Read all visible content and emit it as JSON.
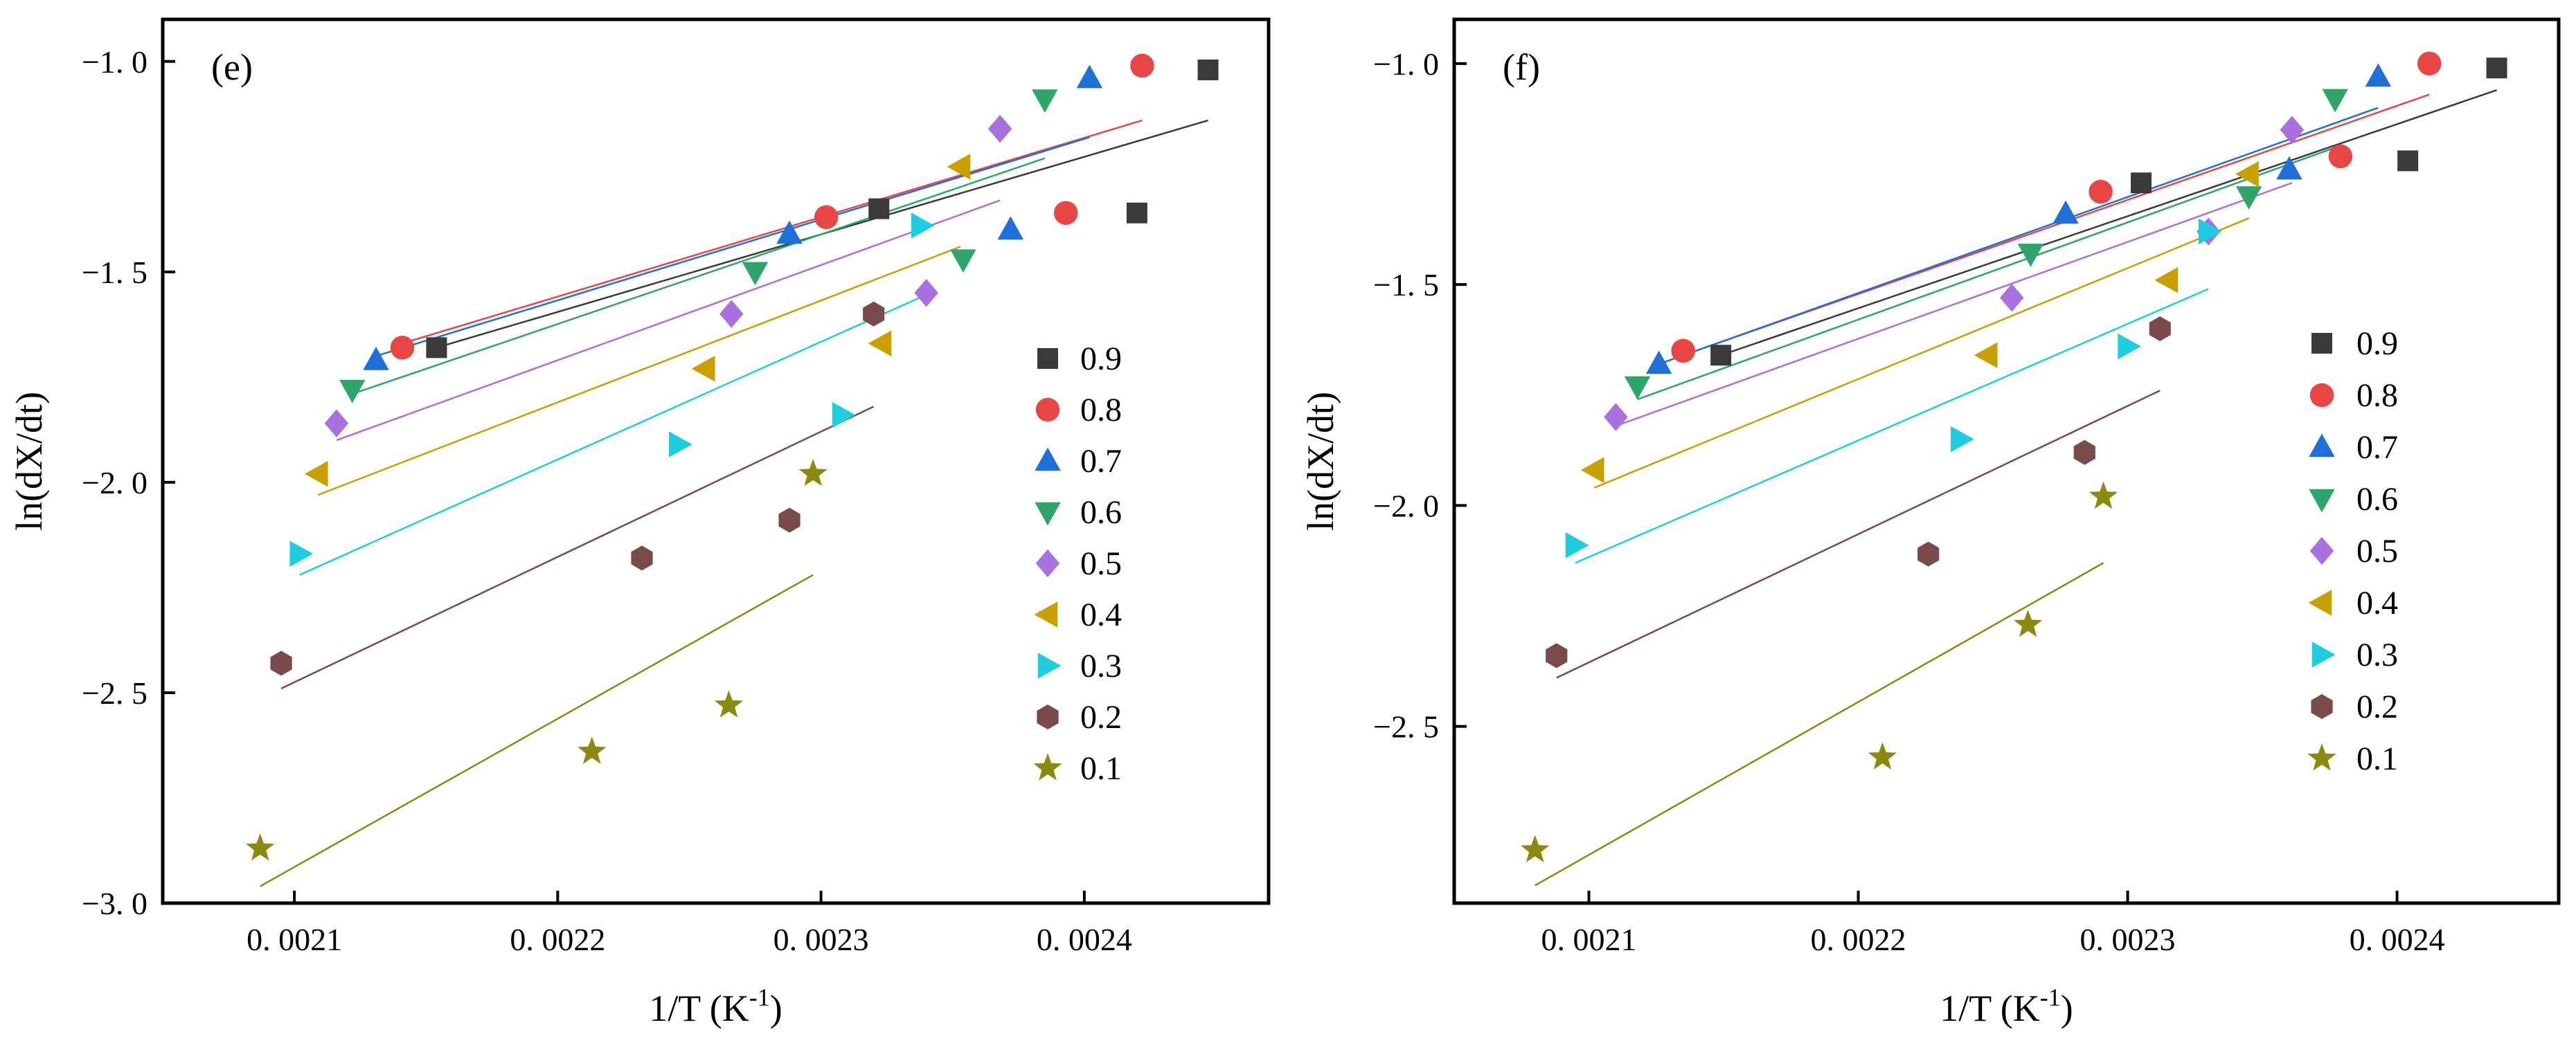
{
  "chart_data": [
    {
      "type": "scatter",
      "panel_label": "(e)",
      "xlabel": "1/T (K",
      "xlabel_sup": "-1",
      "xlabel_end": ")",
      "ylabel": "ln(dX/dt)",
      "xlim": [
        0.00205,
        0.00247
      ],
      "ylim": [
        -3.0,
        -0.9
      ],
      "xticks": [
        0.0021,
        0.0022,
        0.0023,
        0.0024
      ],
      "xtick_labels": [
        "0. 0021",
        "0. 0022",
        "0. 0023",
        "0. 0024"
      ],
      "yticks": [
        -3.0,
        -2.5,
        -2.0,
        -1.5,
        -1.0
      ],
      "ytick_labels": [
        "−3. 0",
        "−2. 5",
        "−2. 0",
        "−1. 5",
        "−1. 0"
      ],
      "legend_position": "center-right",
      "series": [
        {
          "name": "0.9",
          "marker": "square",
          "color": "#3a3a3a",
          "points": [
            [
              0.002154,
              -1.68
            ],
            [
              0.002322,
              -1.35
            ],
            [
              0.00242,
              -1.36
            ],
            [
              0.002447,
              -1.02
            ]
          ],
          "fit": [
            [
              0.002154,
              -1.68
            ],
            [
              0.002447,
              -1.14
            ]
          ]
        },
        {
          "name": "0.8",
          "marker": "circle",
          "color": "#e84545",
          "points": [
            [
              0.002141,
              -1.68
            ],
            [
              0.002302,
              -1.37
            ],
            [
              0.002393,
              -1.36
            ],
            [
              0.002422,
              -1.01
            ]
          ],
          "fit": [
            [
              0.002141,
              -1.67
            ],
            [
              0.002422,
              -1.14
            ]
          ]
        },
        {
          "name": "0.7",
          "marker": "triangle-up",
          "color": "#1f6fd8",
          "points": [
            [
              0.002131,
              -1.71
            ],
            [
              0.002288,
              -1.41
            ],
            [
              0.002372,
              -1.4
            ],
            [
              0.002402,
              -1.04
            ]
          ],
          "fit": [
            [
              0.002131,
              -1.7
            ],
            [
              0.002402,
              -1.18
            ]
          ]
        },
        {
          "name": "0.6",
          "marker": "triangle-down",
          "color": "#2ea66a",
          "points": [
            [
              0.002122,
              -1.78
            ],
            [
              0.002275,
              -1.5
            ],
            [
              0.002354,
              -1.47
            ],
            [
              0.002385,
              -1.09
            ]
          ],
          "fit": [
            [
              0.002122,
              -1.79
            ],
            [
              0.002385,
              -1.23
            ]
          ]
        },
        {
          "name": "0.5",
          "marker": "diamond",
          "color": "#a970df",
          "points": [
            [
              0.002116,
              -1.86
            ],
            [
              0.002266,
              -1.6
            ],
            [
              0.00234,
              -1.55
            ],
            [
              0.002368,
              -1.16
            ]
          ],
          "fit": [
            [
              0.002116,
              -1.9
            ],
            [
              0.002368,
              -1.33
            ]
          ]
        },
        {
          "name": "0.4",
          "marker": "triangle-left",
          "color": "#c9a000",
          "points": [
            [
              0.002109,
              -1.98
            ],
            [
              0.002256,
              -1.73
            ],
            [
              0.002323,
              -1.67
            ],
            [
              0.002353,
              -1.25
            ]
          ],
          "fit": [
            [
              0.002109,
              -2.03
            ],
            [
              0.002353,
              -1.44
            ]
          ]
        },
        {
          "name": "0.3",
          "marker": "triangle-right",
          "color": "#1ecde0",
          "points": [
            [
              0.002102,
              -2.17
            ],
            [
              0.002246,
              -1.91
            ],
            [
              0.002308,
              -1.84
            ],
            [
              0.002338,
              -1.39
            ]
          ],
          "fit": [
            [
              0.002102,
              -2.22
            ],
            [
              0.002338,
              -1.56
            ]
          ]
        },
        {
          "name": "0.2",
          "marker": "hexagon",
          "color": "#7a4a4a",
          "points": [
            [
              0.002095,
              -2.43
            ],
            [
              0.002232,
              -2.18
            ],
            [
              0.002288,
              -2.09
            ],
            [
              0.00232,
              -1.6
            ]
          ],
          "fit": [
            [
              0.002095,
              -2.49
            ],
            [
              0.00232,
              -1.82
            ]
          ]
        },
        {
          "name": "0.1",
          "marker": "star",
          "color": "#8a8a10",
          "points": [
            [
              0.002087,
              -2.87
            ],
            [
              0.002213,
              -2.64
            ],
            [
              0.002265,
              -2.53
            ],
            [
              0.002297,
              -1.98
            ]
          ],
          "fit": [
            [
              0.002087,
              -2.96
            ],
            [
              0.002297,
              -2.22
            ]
          ]
        }
      ]
    },
    {
      "type": "scatter",
      "panel_label": "(f)",
      "xlabel": "1/T (K",
      "xlabel_sup": "-1",
      "xlabel_end": ")",
      "ylabel": "ln(dX/dt)",
      "xlim": [
        0.00205,
        0.00246
      ],
      "ylim": [
        -2.9,
        -0.9
      ],
      "xticks": [
        0.0021,
        0.0022,
        0.0023,
        0.0024
      ],
      "xtick_labels": [
        "0. 0021",
        "0. 0022",
        "0. 0023",
        "0. 0024"
      ],
      "yticks": [
        -2.5,
        -2.0,
        -1.5,
        -1.0
      ],
      "ytick_labels": [
        "−2. 5",
        "−2. 0",
        "−1. 5",
        "−1. 0"
      ],
      "legend_position": "center-right",
      "series": [
        {
          "name": "0.9",
          "marker": "square",
          "color": "#3a3a3a",
          "points": [
            [
              0.002149,
              -1.66
            ],
            [
              0.002305,
              -1.27
            ],
            [
              0.002404,
              -1.22
            ],
            [
              0.002437,
              -1.01
            ]
          ],
          "fit": [
            [
              0.002149,
              -1.66
            ],
            [
              0.002437,
              -1.06
            ]
          ]
        },
        {
          "name": "0.8",
          "marker": "circle",
          "color": "#e84545",
          "points": [
            [
              0.002135,
              -1.65
            ],
            [
              0.00229,
              -1.29
            ],
            [
              0.002379,
              -1.21
            ],
            [
              0.002412,
              -1.0
            ]
          ],
          "fit": [
            [
              0.002135,
              -1.66
            ],
            [
              0.002412,
              -1.07
            ]
          ]
        },
        {
          "name": "0.7",
          "marker": "triangle-up",
          "color": "#1f6fd8",
          "points": [
            [
              0.002126,
              -1.68
            ],
            [
              0.002277,
              -1.34
            ],
            [
              0.00236,
              -1.24
            ],
            [
              0.002393,
              -1.03
            ]
          ],
          "fit": [
            [
              0.002126,
              -1.68
            ],
            [
              0.002393,
              -1.1
            ]
          ]
        },
        {
          "name": "0.6",
          "marker": "triangle-down",
          "color": "#2ea66a",
          "points": [
            [
              0.002118,
              -1.73
            ],
            [
              0.002264,
              -1.43
            ],
            [
              0.002345,
              -1.3
            ],
            [
              0.002377,
              -1.08
            ]
          ],
          "fit": [
            [
              0.002118,
              -1.76
            ],
            [
              0.002377,
              -1.19
            ]
          ]
        },
        {
          "name": "0.5",
          "marker": "diamond",
          "color": "#a970df",
          "points": [
            [
              0.00211,
              -1.8
            ],
            [
              0.002257,
              -1.53
            ],
            [
              0.00233,
              -1.38
            ],
            [
              0.002361,
              -1.15
            ]
          ],
          "fit": [
            [
              0.00211,
              -1.82
            ],
            [
              0.002361,
              -1.27
            ]
          ]
        },
        {
          "name": "0.4",
          "marker": "triangle-left",
          "color": "#c9a000",
          "points": [
            [
              0.002102,
              -1.92
            ],
            [
              0.002248,
              -1.66
            ],
            [
              0.002315,
              -1.49
            ],
            [
              0.002345,
              -1.25
            ]
          ],
          "fit": [
            [
              0.002102,
              -1.96
            ],
            [
              0.002345,
              -1.35
            ]
          ]
        },
        {
          "name": "0.3",
          "marker": "triangle-right",
          "color": "#1ecde0",
          "points": [
            [
              0.002095,
              -2.09
            ],
            [
              0.002238,
              -1.85
            ],
            [
              0.0023,
              -1.64
            ],
            [
              0.00233,
              -1.38
            ]
          ],
          "fit": [
            [
              0.002095,
              -2.13
            ],
            [
              0.00233,
              -1.51
            ]
          ]
        },
        {
          "name": "0.2",
          "marker": "hexagon",
          "color": "#7a4a4a",
          "points": [
            [
              0.002088,
              -2.34
            ],
            [
              0.002226,
              -2.11
            ],
            [
              0.002284,
              -1.88
            ],
            [
              0.002312,
              -1.6
            ]
          ],
          "fit": [
            [
              0.002088,
              -2.39
            ],
            [
              0.002312,
              -1.74
            ]
          ]
        },
        {
          "name": "0.1",
          "marker": "star",
          "color": "#8a8a10",
          "points": [
            [
              0.00208,
              -2.78
            ],
            [
              0.002209,
              -2.57
            ],
            [
              0.002263,
              -2.27
            ],
            [
              0.002291,
              -1.98
            ]
          ],
          "fit": [
            [
              0.00208,
              -2.86
            ],
            [
              0.002291,
              -2.13
            ]
          ]
        }
      ]
    }
  ]
}
